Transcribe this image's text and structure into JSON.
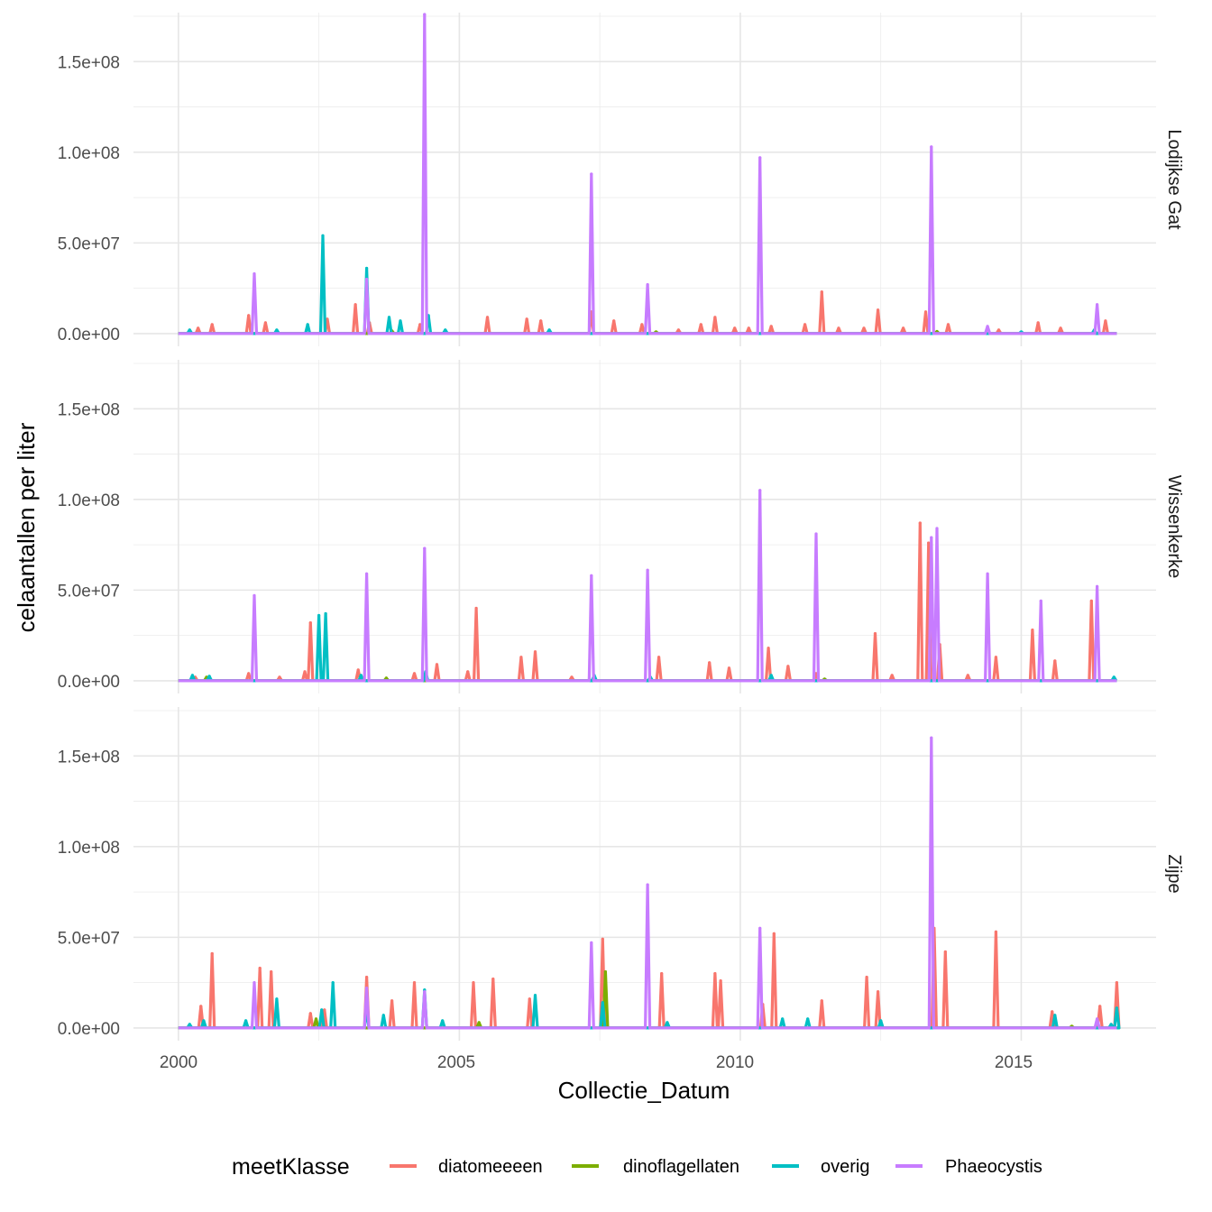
{
  "chart_data": {
    "type": "line",
    "xlabel": "Collectie_Datum",
    "ylabel": "celaantallen per liter",
    "xlim": [
      1999.2,
      2017.4
    ],
    "ylim": [
      -7000000,
      177000000
    ],
    "x_ticks": [
      2000,
      2005,
      2010,
      2015
    ],
    "x_tick_labels": [
      "2000",
      "2005",
      "2010",
      "2015"
    ],
    "y_ticks": [
      0,
      50000000,
      100000000,
      150000000
    ],
    "y_tick_labels": [
      "0.0e+00",
      "5.0e+07",
      "1.0e+08",
      "1.5e+08"
    ],
    "grid": true,
    "facet_by": "location",
    "facets": [
      "Lodijkse Gat",
      "Wissenkerke",
      "Zijpe"
    ],
    "legend": {
      "title": "meetKlasse",
      "position": "bottom",
      "entries": [
        "diatomeeeen",
        "dinoflagellaten",
        "overig",
        "Phaeocystis"
      ]
    },
    "colors": {
      "diatomeeeen": "#F8766D",
      "dinoflagellaten": "#7CAE00",
      "overig": "#00BFC4",
      "Phaeocystis": "#C77CFF"
    },
    "panels": [
      {
        "facet": "Lodijkse Gat",
        "series": [
          {
            "name": "diatomeeeen",
            "peaks": [
              [
                2000.35,
                3000000
              ],
              [
                2000.6,
                5000000
              ],
              [
                2001.25,
                10000000
              ],
              [
                2001.55,
                6000000
              ],
              [
                2002.65,
                8000000
              ],
              [
                2003.15,
                16000000
              ],
              [
                2003.4,
                6000000
              ],
              [
                2004.3,
                5000000
              ],
              [
                2005.5,
                9000000
              ],
              [
                2006.2,
                8000000
              ],
              [
                2006.45,
                7000000
              ],
              [
                2007.35,
                12000000
              ],
              [
                2007.75,
                7000000
              ],
              [
                2008.25,
                5000000
              ],
              [
                2008.9,
                2000000
              ],
              [
                2009.3,
                5000000
              ],
              [
                2009.55,
                9000000
              ],
              [
                2009.9,
                3000000
              ],
              [
                2010.15,
                3000000
              ],
              [
                2010.55,
                4000000
              ],
              [
                2011.15,
                5000000
              ],
              [
                2011.45,
                23000000
              ],
              [
                2011.75,
                3000000
              ],
              [
                2012.2,
                3000000
              ],
              [
                2012.45,
                13000000
              ],
              [
                2012.9,
                3000000
              ],
              [
                2013.3,
                12000000
              ],
              [
                2013.7,
                5000000
              ],
              [
                2014.6,
                2000000
              ],
              [
                2015.3,
                6000000
              ],
              [
                2015.7,
                3000000
              ],
              [
                2016.5,
                7000000
              ]
            ]
          },
          {
            "name": "dinoflagellaten",
            "peaks": [
              [
                2003.8,
                1500000
              ],
              [
                2008.5,
                1000000
              ],
              [
                2013.5,
                1200000
              ]
            ]
          },
          {
            "name": "overig",
            "peaks": [
              [
                2000.2,
                2000000
              ],
              [
                2001.75,
                2000000
              ],
              [
                2002.3,
                5000000
              ],
              [
                2002.57,
                54000000
              ],
              [
                2003.35,
                36000000
              ],
              [
                2003.75,
                9000000
              ],
              [
                2003.95,
                7000000
              ],
              [
                2004.45,
                10000000
              ],
              [
                2004.75,
                2000000
              ],
              [
                2006.6,
                2000000
              ],
              [
                2015.0,
                1000000
              ],
              [
                2016.3,
                2000000
              ]
            ]
          },
          {
            "name": "Phaeocystis",
            "peaks": [
              [
                2001.35,
                33000000
              ],
              [
                2003.35,
                30000000
              ],
              [
                2004.38,
                176000000
              ],
              [
                2007.35,
                88000000
              ],
              [
                2008.35,
                27000000
              ],
              [
                2010.35,
                97000000
              ],
              [
                2013.4,
                103000000
              ],
              [
                2014.4,
                4000000
              ],
              [
                2016.35,
                16000000
              ]
            ]
          }
        ]
      },
      {
        "facet": "Wissenkerke",
        "series": [
          {
            "name": "diatomeeeen",
            "peaks": [
              [
                2000.3,
                2000000
              ],
              [
                2001.25,
                4000000
              ],
              [
                2001.8,
                2000000
              ],
              [
                2002.25,
                5000000
              ],
              [
                2002.35,
                32000000
              ],
              [
                2003.2,
                6000000
              ],
              [
                2004.2,
                4000000
              ],
              [
                2004.6,
                9000000
              ],
              [
                2005.15,
                5000000
              ],
              [
                2005.3,
                40000000
              ],
              [
                2006.1,
                13000000
              ],
              [
                2006.35,
                16000000
              ],
              [
                2007.0,
                2000000
              ],
              [
                2008.55,
                13000000
              ],
              [
                2009.45,
                10000000
              ],
              [
                2009.8,
                7000000
              ],
              [
                2010.5,
                18000000
              ],
              [
                2010.85,
                8000000
              ],
              [
                2011.35,
                4000000
              ],
              [
                2012.4,
                26000000
              ],
              [
                2012.7,
                3000000
              ],
              [
                2013.2,
                87000000
              ],
              [
                2013.35,
                76000000
              ],
              [
                2013.55,
                20000000
              ],
              [
                2014.05,
                3000000
              ],
              [
                2014.55,
                13000000
              ],
              [
                2015.2,
                28000000
              ],
              [
                2015.6,
                11000000
              ],
              [
                2016.25,
                44000000
              ]
            ]
          },
          {
            "name": "dinoflagellaten",
            "peaks": [
              [
                2000.5,
                2000000
              ],
              [
                2003.7,
                1500000
              ],
              [
                2011.5,
                1000000
              ]
            ]
          },
          {
            "name": "overig",
            "peaks": [
              [
                2000.25,
                3000000
              ],
              [
                2000.55,
                2500000
              ],
              [
                2002.5,
                36000000
              ],
              [
                2002.62,
                37000000
              ],
              [
                2003.25,
                3000000
              ],
              [
                2004.4,
                5000000
              ],
              [
                2007.4,
                3000000
              ],
              [
                2008.4,
                2000000
              ],
              [
                2010.55,
                3000000
              ],
              [
                2016.65,
                2000000
              ]
            ]
          },
          {
            "name": "Phaeocystis",
            "peaks": [
              [
                2001.35,
                47000000
              ],
              [
                2003.35,
                59000000
              ],
              [
                2004.38,
                73000000
              ],
              [
                2007.35,
                58000000
              ],
              [
                2008.35,
                61000000
              ],
              [
                2010.35,
                105000000
              ],
              [
                2011.35,
                81000000
              ],
              [
                2013.4,
                79000000
              ],
              [
                2013.5,
                84000000
              ],
              [
                2014.4,
                59000000
              ],
              [
                2015.35,
                44000000
              ],
              [
                2016.35,
                52000000
              ]
            ]
          }
        ]
      },
      {
        "facet": "Zijpe",
        "series": [
          {
            "name": "diatomeeeen",
            "peaks": [
              [
                2000.4,
                12000000
              ],
              [
                2000.6,
                41000000
              ],
              [
                2001.45,
                33000000
              ],
              [
                2001.65,
                31000000
              ],
              [
                2002.35,
                8000000
              ],
              [
                2002.6,
                10000000
              ],
              [
                2003.35,
                28000000
              ],
              [
                2003.8,
                15000000
              ],
              [
                2004.2,
                25000000
              ],
              [
                2005.25,
                25000000
              ],
              [
                2005.6,
                27000000
              ],
              [
                2006.25,
                16000000
              ],
              [
                2007.55,
                49000000
              ],
              [
                2008.6,
                30000000
              ],
              [
                2009.55,
                30000000
              ],
              [
                2009.65,
                26000000
              ],
              [
                2010.4,
                13000000
              ],
              [
                2010.6,
                52000000
              ],
              [
                2011.45,
                15000000
              ],
              [
                2012.25,
                28000000
              ],
              [
                2012.45,
                20000000
              ],
              [
                2013.45,
                55000000
              ],
              [
                2013.65,
                42000000
              ],
              [
                2014.55,
                53000000
              ],
              [
                2015.55,
                9000000
              ],
              [
                2016.4,
                12000000
              ],
              [
                2016.7,
                25000000
              ]
            ]
          },
          {
            "name": "dinoflagellaten",
            "peaks": [
              [
                2002.45,
                5000000
              ],
              [
                2005.35,
                3000000
              ],
              [
                2007.6,
                31000000
              ],
              [
                2015.9,
                1000000
              ]
            ]
          },
          {
            "name": "overig",
            "peaks": [
              [
                2000.2,
                2000000
              ],
              [
                2000.45,
                4000000
              ],
              [
                2001.2,
                4000000
              ],
              [
                2001.75,
                16000000
              ],
              [
                2002.55,
                10000000
              ],
              [
                2002.75,
                25000000
              ],
              [
                2003.35,
                10000000
              ],
              [
                2003.65,
                7000000
              ],
              [
                2004.38,
                21000000
              ],
              [
                2004.7,
                4000000
              ],
              [
                2006.35,
                18000000
              ],
              [
                2007.55,
                14000000
              ],
              [
                2008.7,
                3000000
              ],
              [
                2010.75,
                5000000
              ],
              [
                2011.2,
                5000000
              ],
              [
                2012.5,
                4000000
              ],
              [
                2015.6,
                7000000
              ],
              [
                2016.6,
                2000000
              ],
              [
                2016.7,
                11000000
              ]
            ]
          },
          {
            "name": "Phaeocystis",
            "peaks": [
              [
                2001.35,
                25000000
              ],
              [
                2003.35,
                22000000
              ],
              [
                2004.38,
                20000000
              ],
              [
                2007.35,
                47000000
              ],
              [
                2008.35,
                79000000
              ],
              [
                2010.35,
                55000000
              ],
              [
                2013.4,
                160000000
              ],
              [
                2016.35,
                5000000
              ]
            ]
          }
        ]
      }
    ]
  }
}
